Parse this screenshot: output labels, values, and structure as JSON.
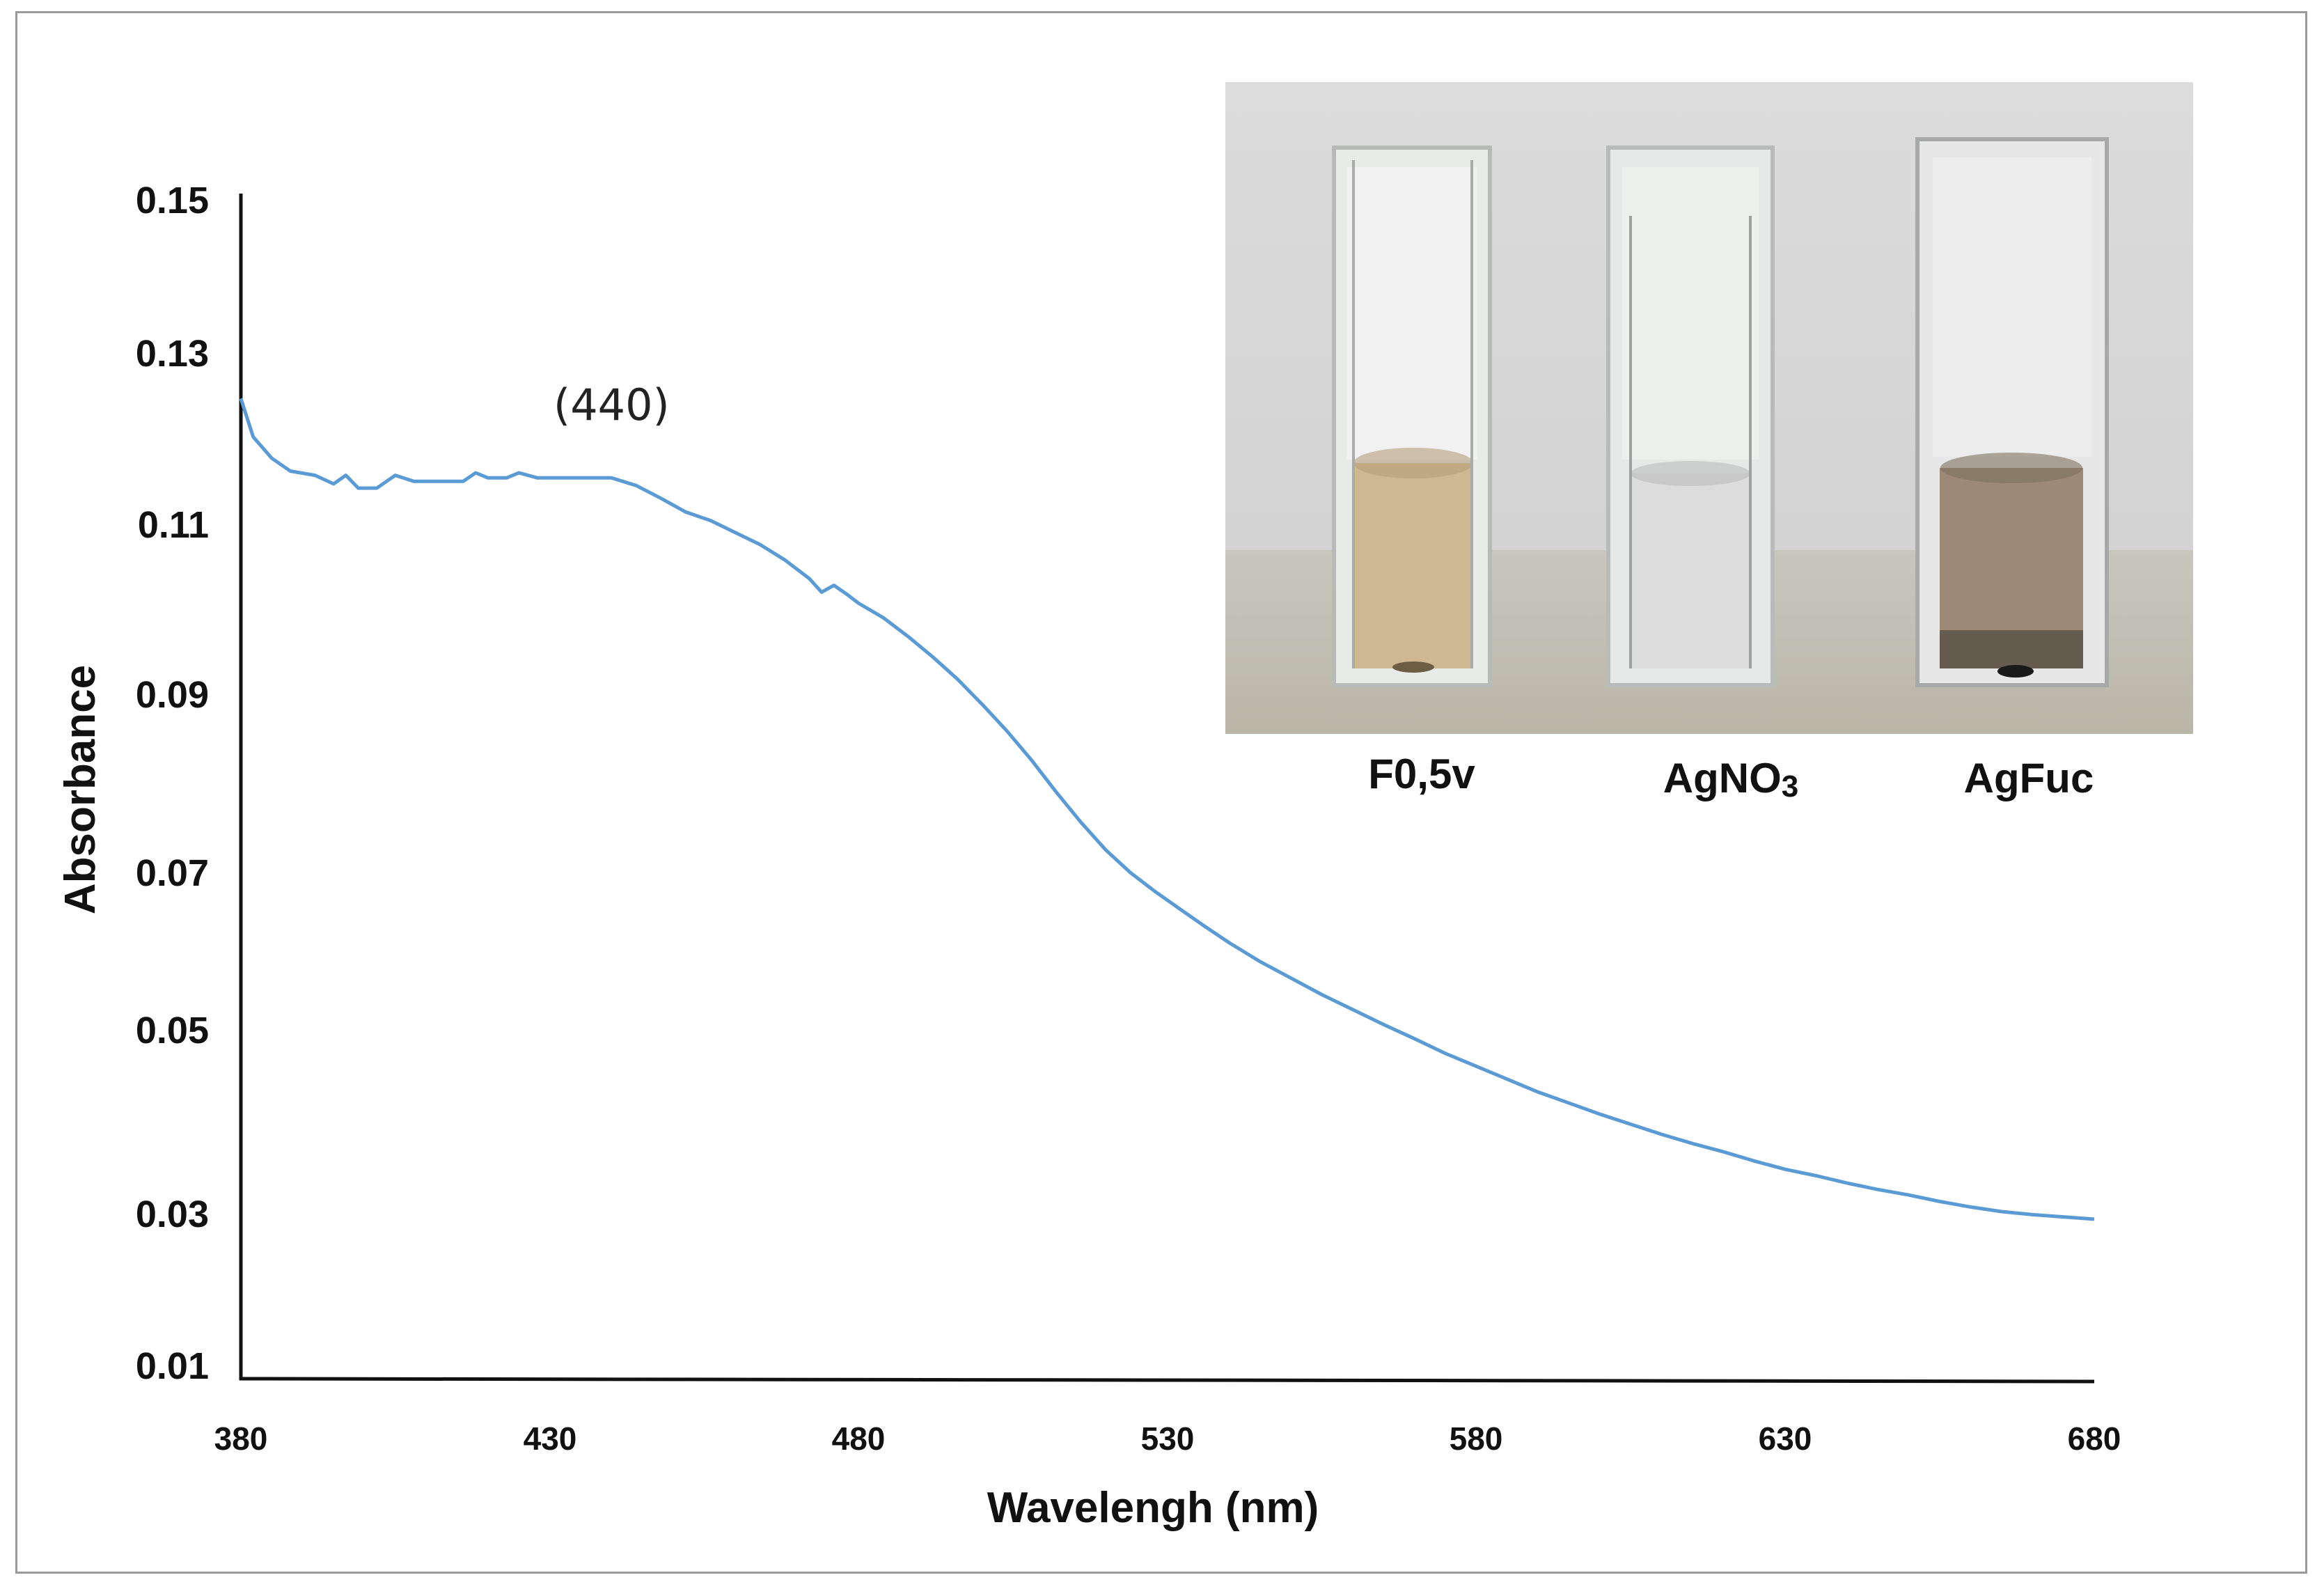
{
  "chart_data": {
    "type": "line",
    "title": "",
    "xlabel": "Wavelengh (nm)",
    "ylabel": "Absorbance",
    "xlim": [
      380,
      680
    ],
    "ylim": [
      0.01,
      0.15
    ],
    "x_ticks": [
      "380",
      "430",
      "480",
      "530",
      "580",
      "630",
      "680"
    ],
    "y_ticks": [
      "0.15",
      "0.13",
      "0.11",
      "0.09",
      "0.07",
      "0.05",
      "0.03",
      "0.01"
    ],
    "annotation": {
      "text": "(440)",
      "x": 440,
      "y": 0.122
    },
    "legend": "none",
    "grid": false,
    "series": [
      {
        "name": "Absorbance",
        "color": "#5b9bd5",
        "x": [
          380,
          382,
          385,
          388,
          392,
          395,
          397,
          399,
          402,
          405,
          408,
          410,
          413,
          416,
          418,
          420,
          423,
          425,
          428,
          430,
          433,
          436,
          440,
          444,
          448,
          452,
          456,
          460,
          464,
          468,
          472,
          474,
          476,
          478,
          480,
          484,
          488,
          492,
          496,
          500,
          504,
          508,
          512,
          516,
          520,
          524,
          528,
          532,
          536,
          540,
          545,
          550,
          555,
          560,
          565,
          570,
          575,
          580,
          585,
          590,
          595,
          600,
          605,
          610,
          615,
          620,
          625,
          630,
          635,
          640,
          645,
          650,
          655,
          660,
          665,
          670,
          675,
          680
        ],
        "y": [
          0.1245,
          0.12,
          0.1175,
          0.116,
          0.1155,
          0.1145,
          0.1155,
          0.114,
          0.114,
          0.1155,
          0.1148,
          0.1148,
          0.1148,
          0.1148,
          0.1158,
          0.1152,
          0.1152,
          0.1158,
          0.1152,
          0.1152,
          0.1152,
          0.1152,
          0.1152,
          0.1143,
          0.1128,
          0.1112,
          0.1102,
          0.1088,
          0.1074,
          0.1056,
          0.1034,
          0.1018,
          0.1026,
          0.1016,
          0.1005,
          0.0988,
          0.0966,
          0.0942,
          0.0916,
          0.0887,
          0.0857,
          0.0824,
          0.0788,
          0.0754,
          0.0723,
          0.0697,
          0.0673,
          0.0651,
          0.0629,
          0.0608,
          0.0584,
          0.0563,
          0.0542,
          0.0523,
          0.0504,
          0.0488,
          0.0472,
          0.0458,
          0.0444,
          0.043,
          0.0418,
          0.0406,
          0.0395,
          0.0384,
          0.0374,
          0.0365,
          0.0355,
          0.0346,
          0.0339,
          0.0331,
          0.0324,
          0.0318,
          0.0311,
          0.0305,
          0.03,
          0.0296,
          0.0293,
          0.029
        ]
      }
    ]
  },
  "inset": {
    "description_free": true,
    "cuvettes": [
      {
        "label": "F0,5v",
        "liquid_color": "#cdb892"
      },
      {
        "label": "AgNO",
        "subscript": "3",
        "liquid_color": "#dcdcdc"
      },
      {
        "label": "AgFuc",
        "liquid_color": "#9c8a77"
      }
    ]
  }
}
